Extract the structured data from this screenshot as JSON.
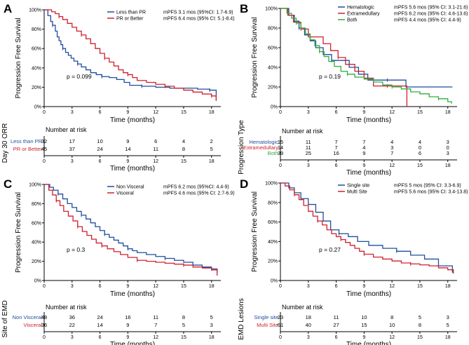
{
  "chart_data": [
    {
      "type": "line",
      "panel": "A",
      "xlabel": "Time (months)",
      "ylabel": "Progression Free Survival",
      "xlim": [
        0,
        19
      ],
      "ylim": [
        0,
        100
      ],
      "x_ticks": [
        "0",
        "3",
        "6",
        "9",
        "12",
        "15",
        "18"
      ],
      "y_ticks": [
        "0%",
        "20%",
        "40%",
        "60%",
        "80%",
        "100%"
      ],
      "legend_position": "top-right",
      "pvalue": "p = 0.099",
      "series": [
        {
          "name": "Less than PR",
          "legend_text": "mPFS 3.1 mos (95%CI: 1.7-6.9)",
          "color": "#1f4e9c",
          "x": [
            0,
            0.4,
            0.7,
            0.9,
            1.2,
            1.4,
            1.6,
            1.8,
            2.0,
            2.3,
            2.6,
            2.9,
            3.2,
            3.6,
            4.0,
            4.5,
            5.0,
            5.6,
            6.2,
            7.0,
            7.8,
            8.6,
            9.2,
            10.5,
            12.0,
            13.5,
            15.0,
            16.5,
            17.8,
            18.5
          ],
          "y": [
            100,
            94,
            88,
            84,
            78,
            72,
            68,
            64,
            60,
            56,
            53,
            50,
            47,
            44,
            41,
            38,
            35,
            33,
            31,
            30,
            28,
            25,
            22,
            21,
            20,
            19,
            19,
            18,
            17,
            6
          ]
        },
        {
          "name": "PR or Better",
          "legend_text": "mPFS 6.4 mos (95% CI: 5.1-8.4)",
          "color": "#d0202e",
          "x": [
            0,
            0.8,
            1.2,
            1.6,
            2.0,
            2.5,
            3.0,
            3.5,
            4.0,
            4.5,
            5.0,
            5.5,
            6.0,
            6.5,
            7.0,
            7.5,
            8.0,
            8.5,
            9.0,
            9.5,
            10.0,
            11.0,
            12.0,
            13.0,
            14.0,
            15.0,
            16.0,
            17.0,
            18.0,
            18.5
          ],
          "y": [
            100,
            98,
            96,
            93,
            90,
            86,
            82,
            78,
            74,
            70,
            65,
            60,
            55,
            50,
            46,
            42,
            38,
            35,
            33,
            30,
            27,
            25,
            23,
            21,
            19,
            17,
            15,
            13,
            11,
            6
          ]
        }
      ],
      "risk_table": {
        "title": "Number at risk",
        "ylabel": "Day 30 ORR",
        "times": [
          "0",
          "3",
          "6",
          "9",
          "12",
          "15",
          "18"
        ],
        "rows": [
          {
            "label": "Less than PR",
            "color": "#1f4e9c",
            "values": [
              "32",
              "17",
              "10",
              "9",
              "6",
              "4",
              "2"
            ]
          },
          {
            "label": "PR or Better",
            "color": "#d0202e",
            "values": [
              "45",
              "37",
              "24",
              "14",
              "11",
              "8",
              "5"
            ]
          }
        ]
      }
    },
    {
      "type": "line",
      "panel": "B",
      "xlabel": "Time (months)",
      "ylabel": "Progression Free Survival",
      "xlim": [
        0,
        19
      ],
      "ylim": [
        0,
        100
      ],
      "x_ticks": [
        "0",
        "3",
        "6",
        "9",
        "12",
        "15",
        "18"
      ],
      "y_ticks": [
        "0%",
        "20%",
        "40%",
        "60%",
        "80%",
        "100%"
      ],
      "legend_position": "top-right",
      "pvalue": "p = 0.19",
      "series": [
        {
          "name": "Hematologic",
          "legend_text": "mPFS 5.6 mos (95% CI: 3.1-21.6)",
          "color": "#1f4e9c",
          "x": [
            0,
            0.9,
            1.5,
            2.0,
            2.6,
            3.2,
            3.8,
            4.6,
            5.5,
            6.4,
            7.4,
            8.4,
            9.4,
            11.5,
            13.5,
            16.0,
            18.5
          ],
          "y": [
            100,
            93,
            87,
            80,
            73,
            67,
            60,
            53,
            47,
            47,
            40,
            33,
            27,
            27,
            20,
            20,
            20
          ]
        },
        {
          "name": "Extramedullary",
          "legend_text": "mPFS 6.2 mos (95% CI: 4.6-13.6)",
          "color": "#d0202e",
          "x": [
            0,
            0.8,
            1.4,
            2.2,
            3.0,
            3.8,
            4.6,
            5.4,
            6.2,
            7.0,
            8.0,
            9.0,
            10.0,
            11.5,
            13.3,
            13.6
          ],
          "y": [
            100,
            93,
            86,
            79,
            71,
            71,
            64,
            57,
            50,
            43,
            36,
            29,
            21,
            21,
            21,
            0
          ]
        },
        {
          "name": "Both",
          "legend_text": "mPFS 4.4 mos (95% CI: 4.4-9)",
          "color": "#2eae3c",
          "x": [
            0,
            0.7,
            1.2,
            1.7,
            2.2,
            2.7,
            3.2,
            3.7,
            4.2,
            4.7,
            5.2,
            5.8,
            6.5,
            7.2,
            8.0,
            9.0,
            10.0,
            11.0,
            12.0,
            13.0,
            14.0,
            15.0,
            16.0,
            17.0,
            18.0,
            18.4
          ],
          "y": [
            100,
            95,
            90,
            85,
            80,
            74,
            68,
            62,
            56,
            51,
            46,
            41,
            36,
            33,
            30,
            28,
            25,
            22,
            20,
            18,
            15,
            13,
            10,
            8,
            5,
            3
          ]
        }
      ],
      "risk_table": {
        "title": "Number at risk",
        "ylabel": "Progression Type",
        "times": [
          "0",
          "3",
          "6",
          "9",
          "12",
          "15",
          "18"
        ],
        "rows": [
          {
            "label": "Hematologic",
            "color": "#1f4e9c",
            "values": [
              "15",
              "11",
              "7",
              "7",
              "4",
              "4",
              "3"
            ]
          },
          {
            "label": "Extramedullary",
            "color": "#d0202e",
            "values": [
              "14",
              "11",
              "7",
              "4",
              "3",
              "0",
              "0"
            ]
          },
          {
            "label": "Both",
            "color": "#2eae3c",
            "values": [
              "39",
              "25",
              "16",
              "9",
              "7",
              "6",
              "3"
            ]
          }
        ]
      }
    },
    {
      "type": "line",
      "panel": "C",
      "xlabel": "Time (months)",
      "ylabel": "Progression Free Survival",
      "xlim": [
        0,
        19
      ],
      "ylim": [
        0,
        100
      ],
      "x_ticks": [
        "0",
        "3",
        "6",
        "9",
        "12",
        "15",
        "18"
      ],
      "y_ticks": [
        "0%",
        "20%",
        "40%",
        "60%",
        "80%",
        "100%"
      ],
      "legend_position": "top-right",
      "pvalue": "p = 0.3",
      "series": [
        {
          "name": "Non Visceral",
          "legend_text": "mPFS 6.2 mos (95%CI: 4.4-9)",
          "color": "#1f4e9c",
          "x": [
            0,
            0.6,
            1.0,
            1.5,
            2.0,
            2.5,
            3.0,
            3.5,
            4.0,
            4.5,
            5.0,
            5.5,
            6.0,
            6.5,
            7.0,
            7.5,
            8.0,
            8.5,
            9.0,
            9.5,
            10.0,
            11.0,
            12.0,
            13.0,
            14.0,
            15.0,
            16.0,
            17.0,
            18.0,
            18.6
          ],
          "y": [
            100,
            97,
            94,
            90,
            85,
            80,
            76,
            72,
            68,
            64,
            60,
            56,
            52,
            48,
            45,
            42,
            39,
            36,
            33,
            31,
            29,
            27,
            25,
            23,
            21,
            19,
            16,
            14,
            12,
            8
          ]
        },
        {
          "name": "Visceral",
          "legend_text": "mPFS 4.6 mos (95% CI: 2.7-6.9)",
          "color": "#d0202e",
          "x": [
            0,
            0.5,
            0.9,
            1.3,
            1.7,
            2.1,
            2.6,
            3.1,
            3.6,
            4.1,
            4.6,
            5.1,
            5.6,
            6.2,
            6.8,
            7.5,
            8.2,
            9.0,
            10.0,
            11.0,
            12.0,
            13.0,
            14.0,
            15.0,
            16.0,
            17.0,
            18.0,
            18.6
          ],
          "y": [
            100,
            94,
            89,
            83,
            78,
            72,
            67,
            62,
            56,
            51,
            47,
            43,
            39,
            36,
            33,
            30,
            27,
            24,
            21,
            20,
            19,
            18,
            17,
            16,
            14,
            13,
            11,
            5
          ]
        }
      ],
      "risk_table": {
        "title": "Number at risk",
        "ylabel": "Site of EMD",
        "times": [
          "0",
          "3",
          "6",
          "9",
          "12",
          "15",
          "18"
        ],
        "rows": [
          {
            "label": "Non Visceral",
            "color": "#1f4e9c",
            "values": [
              "48",
              "36",
              "24",
              "16",
              "11",
              "8",
              "5"
            ]
          },
          {
            "label": "Visceral",
            "color": "#d0202e",
            "values": [
              "36",
              "22",
              "14",
              "9",
              "7",
              "5",
              "3"
            ]
          }
        ]
      }
    },
    {
      "type": "line",
      "panel": "D",
      "xlabel": "Time (months)",
      "ylabel": "Progression Free Survival",
      "xlim": [
        0,
        19
      ],
      "ylim": [
        0,
        100
      ],
      "x_ticks": [
        "0",
        "3",
        "6",
        "9",
        "12",
        "15",
        "18"
      ],
      "y_ticks": [
        "0%",
        "20%",
        "40%",
        "60%",
        "80%",
        "100%"
      ],
      "legend_position": "top-right",
      "pvalue": "p = 0.27",
      "series": [
        {
          "name": "Single site",
          "legend_text": "mPFS 5 mos (95% CI: 3.3-6.9)",
          "color": "#1f4e9c",
          "x": [
            0,
            0.9,
            1.5,
            2.2,
            3.0,
            3.8,
            4.6,
            5.4,
            6.3,
            7.3,
            8.3,
            9.5,
            11.0,
            12.5,
            14.0,
            15.5,
            17.0,
            18.5
          ],
          "y": [
            100,
            95,
            90,
            84,
            78,
            70,
            61,
            52,
            48,
            45,
            40,
            36,
            33,
            30,
            26,
            22,
            15,
            8
          ]
        },
        {
          "name": "Multi Site",
          "legend_text": "mPFS 5.6 mos (95% CI: 3.4-13.8)",
          "color": "#d0202e",
          "x": [
            0,
            0.5,
            1.0,
            1.5,
            2.0,
            2.5,
            3.0,
            3.5,
            4.0,
            4.5,
            5.0,
            5.5,
            6.0,
            6.5,
            7.0,
            7.5,
            8.0,
            8.5,
            9.0,
            10.0,
            11.0,
            12.0,
            13.0,
            14.0,
            15.0,
            16.0,
            17.0,
            18.0,
            18.6
          ],
          "y": [
            100,
            97,
            93,
            88,
            83,
            77,
            71,
            66,
            61,
            57,
            52,
            48,
            45,
            42,
            39,
            36,
            33,
            30,
            27,
            24,
            22,
            20,
            18,
            17,
            16,
            15,
            13,
            11,
            7
          ]
        }
      ],
      "risk_table": {
        "title": "Number at risk",
        "ylabel": "EMD Lesions",
        "times": [
          "0",
          "3",
          "6",
          "9",
          "12",
          "15",
          "18"
        ],
        "rows": [
          {
            "label": "Single site",
            "color": "#1f4e9c",
            "values": [
              "23",
              "18",
              "11",
              "10",
              "8",
              "5",
              "3"
            ]
          },
          {
            "label": "Multi Site",
            "color": "#d0202e",
            "values": [
              "61",
              "40",
              "27",
              "15",
              "10",
              "8",
              "5"
            ]
          }
        ]
      }
    }
  ]
}
